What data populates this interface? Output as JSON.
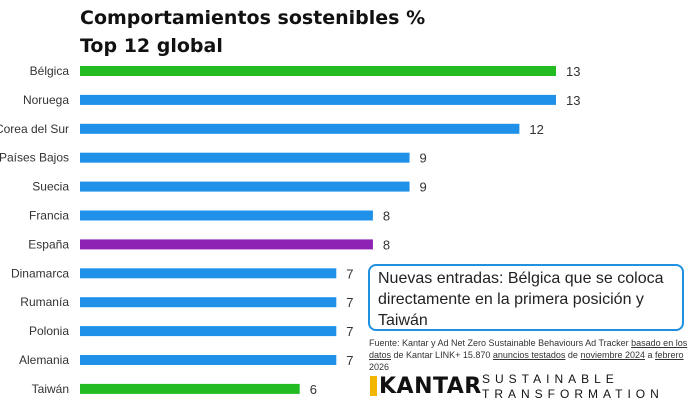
{
  "chart_data": {
    "type": "bar",
    "orientation": "horizontal",
    "title_line1": "Comportamientos sostenibles %",
    "title_line2": "Top 12 global",
    "categories": [
      "Bélgica",
      "Noruega",
      "Corea del Sur",
      "Países Bajos",
      "Suecia",
      "Francia",
      "España",
      "Dinamarca",
      "Rumanía",
      "Polonia",
      "Alemania",
      "Taiwán"
    ],
    "values": [
      13,
      13,
      12,
      9,
      9,
      8,
      8,
      7,
      7,
      7,
      7,
      6
    ],
    "data_labels": [
      "13",
      "13",
      "12",
      "9",
      "9",
      "8",
      "8",
      "7",
      "7",
      "7",
      "7",
      "6"
    ],
    "bar_colors": [
      "#22bb22",
      "#1f91e8",
      "#1f91e8",
      "#1f91e8",
      "#1f91e8",
      "#1f91e8",
      "#8e22b5",
      "#1f91e8",
      "#1f91e8",
      "#1f91e8",
      "#1f91e8",
      "#22bb22"
    ],
    "xlim": [
      0,
      13
    ],
    "grid": false,
    "legend": "none"
  },
  "callout": {
    "text": "Nuevas entradas: Bélgica que se coloca directamente en la primera posición y Taiwán"
  },
  "source": {
    "p1": "Fuente: Kantar y Ad Net Zero Sustainable Behaviours Ad Tracker ",
    "p2": "basado en los datos",
    "p3": " de Kantar LINK+ 15.870 ",
    "p4": "anuncios testados",
    "p5": " de ",
    "p6": "noviembre 2024",
    "p7": " a ",
    "p8": "febrero",
    "p9": " 2026"
  },
  "brand": {
    "kantar": "KANTAR",
    "line1": "SUSTAINABLE",
    "line2": "TRANSFORMATION"
  }
}
